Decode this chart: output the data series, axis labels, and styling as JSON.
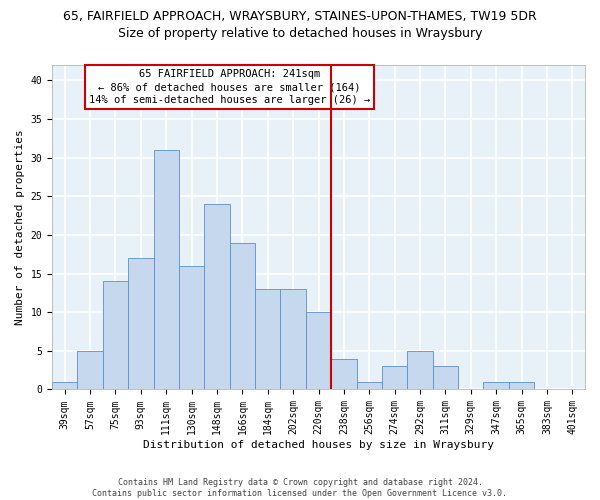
{
  "title": "65, FAIRFIELD APPROACH, WRAYSBURY, STAINES-UPON-THAMES, TW19 5DR",
  "subtitle": "Size of property relative to detached houses in Wraysbury",
  "xlabel": "Distribution of detached houses by size in Wraysbury",
  "ylabel": "Number of detached properties",
  "bar_values": [
    1,
    5,
    14,
    17,
    31,
    16,
    24,
    19,
    13,
    13,
    10,
    4,
    1,
    3,
    5,
    3,
    0,
    1,
    1,
    0,
    0
  ],
  "bar_labels": [
    "39sqm",
    "57sqm",
    "75sqm",
    "93sqm",
    "111sqm",
    "130sqm",
    "148sqm",
    "166sqm",
    "184sqm",
    "202sqm",
    "220sqm",
    "238sqm",
    "256sqm",
    "274sqm",
    "292sqm",
    "311sqm",
    "329sqm",
    "347sqm",
    "365sqm",
    "383sqm",
    "401sqm"
  ],
  "bar_color": "#c5d8ee",
  "bar_edge_color": "#5b8fca",
  "vline_color": "#cc0000",
  "annotation_text": "65 FAIRFIELD APPROACH: 241sqm\n← 86% of detached houses are smaller (164)\n14% of semi-detached houses are larger (26) →",
  "annotation_box_color": "#cc0000",
  "ylim": [
    0,
    42
  ],
  "yticks": [
    0,
    5,
    10,
    15,
    20,
    25,
    30,
    35,
    40
  ],
  "footnote": "Contains HM Land Registry data © Crown copyright and database right 2024.\nContains public sector information licensed under the Open Government Licence v3.0.",
  "background_color": "#e8f0f8",
  "grid_color": "#ffffff",
  "title_fontsize": 9,
  "subtitle_fontsize": 9,
  "xlabel_fontsize": 8,
  "ylabel_fontsize": 8,
  "tick_fontsize": 7,
  "annotation_fontsize": 7.5,
  "footnote_fontsize": 6
}
